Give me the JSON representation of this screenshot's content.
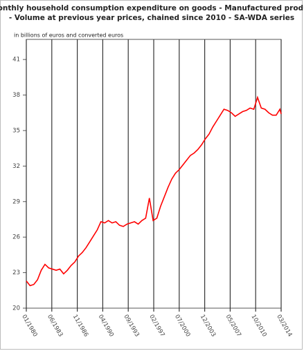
{
  "chart_data": {
    "type": "line",
    "title": "Monthly household consumption expenditure on goods - Manufactured produc",
    "subtitle": "- Volume at previous year prices, chained since 2010 - SA-WDA series",
    "y_label": "in billions of euros and converted euros",
    "x": [
      "01/1980",
      "07/1980",
      "01/1981",
      "07/1981",
      "01/1982",
      "07/1982",
      "01/1983",
      "07/1983",
      "01/1984",
      "07/1984",
      "01/1985",
      "07/1985",
      "01/1986",
      "07/1986",
      "01/1987",
      "07/1987",
      "01/1988",
      "07/1988",
      "01/1989",
      "07/1989",
      "01/1990",
      "07/1990",
      "01/1991",
      "07/1991",
      "01/1992",
      "07/1992",
      "01/1993",
      "07/1993",
      "01/1994",
      "07/1994",
      "01/1995",
      "07/1995",
      "01/1996",
      "07/1996",
      "01/1997",
      "07/1997",
      "01/1998",
      "07/1998",
      "01/1999",
      "07/1999",
      "01/2000",
      "07/2000",
      "01/2001",
      "07/2001",
      "01/2002",
      "07/2002",
      "01/2003",
      "07/2003",
      "01/2004",
      "07/2004",
      "01/2005",
      "07/2005",
      "01/2006",
      "07/2006",
      "01/2007",
      "07/2007",
      "01/2008",
      "07/2008",
      "01/2009",
      "07/2009",
      "01/2010",
      "07/2010",
      "01/2011",
      "07/2011",
      "01/2012",
      "07/2012",
      "01/2013",
      "07/2013",
      "01/2014",
      "03/2014"
    ],
    "series": [
      {
        "name": "Manufactured products",
        "color": "#ff0000",
        "values": [
          22.3,
          21.9,
          22.0,
          22.4,
          23.2,
          23.7,
          23.4,
          23.3,
          23.2,
          23.3,
          22.9,
          23.2,
          23.6,
          23.9,
          24.4,
          24.7,
          25.1,
          25.6,
          26.1,
          26.6,
          27.3,
          27.2,
          27.4,
          27.2,
          27.3,
          27.0,
          26.9,
          27.1,
          27.2,
          27.3,
          27.1,
          27.4,
          27.6,
          29.3,
          27.4,
          27.6,
          28.6,
          29.4,
          30.2,
          30.9,
          31.4,
          31.7,
          32.1,
          32.5,
          32.9,
          33.1,
          33.4,
          33.8,
          34.3,
          34.7,
          35.3,
          35.8,
          36.3,
          36.8,
          36.7,
          36.5,
          36.2,
          36.4,
          36.6,
          36.7,
          36.9,
          36.8,
          37.8,
          36.9,
          36.8,
          36.5,
          36.3,
          36.3,
          36.8,
          36.4
        ]
      }
    ],
    "xlim": [
      "01/1980",
      "03/2014"
    ],
    "xticks": [
      "01/1980",
      "06/1983",
      "11/1986",
      "04/1990",
      "09/1993",
      "02/1997",
      "07/2000",
      "12/2003",
      "05/2007",
      "10/2010",
      "03/2014"
    ],
    "ylim": [
      20,
      42.7
    ],
    "yticks": [
      20,
      23,
      26,
      29,
      32,
      35,
      38,
      41
    ],
    "grid": true
  }
}
